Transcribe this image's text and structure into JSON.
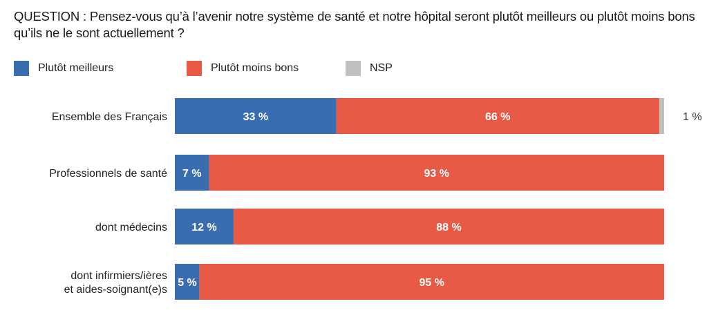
{
  "chart_data": {
    "type": "bar",
    "orientation": "horizontal",
    "stacked": true,
    "title": "QUESTION : Pensez-vous qu’à l’avenir notre système de santé et notre hôpital seront plutôt meilleurs ou plutôt moins bons qu’ils ne le sont actuellement ?",
    "xlabel": "",
    "ylabel": "",
    "xlim": [
      0,
      100
    ],
    "grid": false,
    "legend_position": "top-left",
    "categories": [
      [
        "Ensemble des Français"
      ],
      [
        "Professionnels de santé"
      ],
      [
        "dont médecins"
      ],
      [
        "dont infirmiers/ières",
        "et aides-soignant(e)s"
      ]
    ],
    "series": [
      {
        "name": "Plutôt meilleurs",
        "color": "#3a6cb0",
        "values": [
          33,
          7,
          12,
          5
        ],
        "labels": [
          "33 %",
          "7 %",
          "12 %",
          "5 %"
        ],
        "label_color": "#ffffff"
      },
      {
        "name": "Plutôt moins bons",
        "color": "#e85a45",
        "values": [
          66,
          93,
          88,
          95
        ],
        "labels": [
          "66 %",
          "93 %",
          "88 %",
          "95 %"
        ],
        "label_color": "#ffffff"
      },
      {
        "name": "NSP",
        "color": "#c0c0c0",
        "values": [
          1,
          0,
          0,
          0
        ],
        "labels": [
          "1 %",
          "",
          "",
          ""
        ],
        "label_color": "#333333"
      }
    ]
  }
}
